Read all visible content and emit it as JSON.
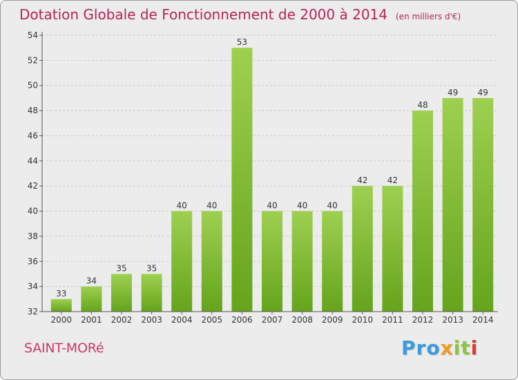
{
  "header": {
    "title": "Dotation Globale de Fonctionnement de 2000 à 2014",
    "unit": "(en milliers d'€)"
  },
  "footer": {
    "commune": "SAINT-MORé",
    "brand": [
      "Pro",
      "x",
      "it",
      "i"
    ]
  },
  "colors": {
    "title": "#b3245a",
    "bar_light": "#9ed050",
    "bar_dark": "#65a41c",
    "background": "#ececec"
  },
  "chart_data": {
    "type": "bar",
    "title": "Dotation Globale de Fonctionnement de 2000 à 2014",
    "subtitle": "(en milliers d'€)",
    "xlabel": "",
    "ylabel": "",
    "categories": [
      "2000",
      "2001",
      "2002",
      "2003",
      "2004",
      "2005",
      "2006",
      "2007",
      "2008",
      "2009",
      "2010",
      "2011",
      "2012",
      "2013",
      "2014"
    ],
    "values": [
      33,
      34,
      35,
      35,
      40,
      40,
      53,
      40,
      40,
      40,
      42,
      42,
      48,
      49,
      49
    ],
    "ylim": [
      32,
      54
    ],
    "yticks": [
      32,
      34,
      36,
      38,
      40,
      42,
      44,
      46,
      48,
      50,
      52,
      54
    ],
    "grid": "horizontal-dashed",
    "legend": "none"
  }
}
